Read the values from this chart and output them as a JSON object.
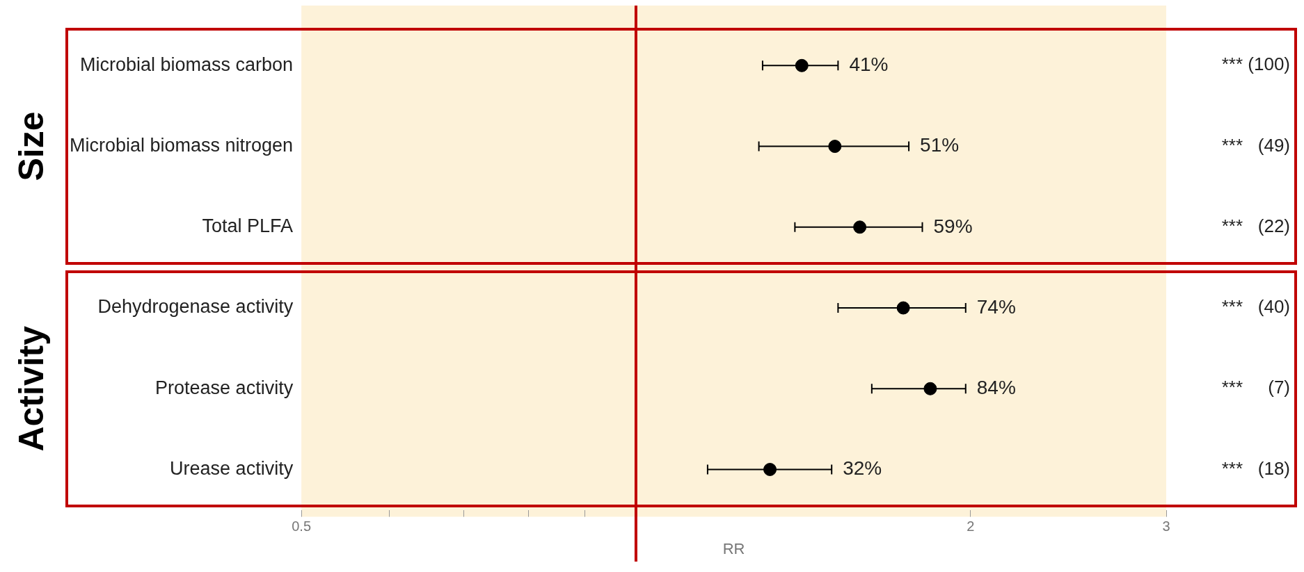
{
  "chart_data": {
    "type": "scatter",
    "orientation": "horizontal",
    "xlabel": "RR",
    "categories": [
      "Microbial biomass carbon",
      "Microbial biomass nitrogen",
      "Total PLFA",
      "Dehydrogenase activity",
      "Protease activity",
      "Urease activity"
    ],
    "series": [
      {
        "color": "#000000",
        "values": [
          1.41,
          1.51,
          1.59,
          1.74,
          1.84,
          1.32
        ],
        "errors": [
          [
            1.3,
            1.52
          ],
          [
            1.29,
            1.76
          ],
          [
            1.39,
            1.81
          ],
          [
            1.52,
            1.98
          ],
          [
            1.63,
            1.98
          ],
          [
            1.16,
            1.5
          ]
        ]
      }
    ],
    "marker": "circle",
    "log": "x",
    "xlim": [
      0.5,
      3
    ],
    "xticks": [
      0.5,
      {
        "value": 0.6,
        "label": null
      },
      {
        "value": 0.7,
        "label": null
      },
      {
        "value": 0.8,
        "label": null
      },
      {
        "value": 0.9,
        "label": null
      },
      2,
      3
    ],
    "ref_lines": [
      {
        "axis": "x",
        "value": 1,
        "color": "#c00000"
      }
    ],
    "bands": [
      {
        "axis": "x",
        "from": 0.5,
        "to": 3,
        "color": "#fdf2d9"
      }
    ],
    "annotations": [
      "Size",
      "Activity",
      "*** (100)",
      "***   (49)",
      "***   (22)",
      "***   (40)",
      "***     (7)",
      "***   (18)",
      {
        "text": "41%",
        "x": 1.52,
        "y": "Microbial biomass carbon"
      },
      {
        "text": "51%",
        "x": 1.76,
        "y": "Microbial biomass nitrogen"
      },
      {
        "text": "59%",
        "x": 1.81,
        "y": "Total PLFA"
      },
      {
        "text": "74%",
        "x": 1.98,
        "y": "Dehydrogenase activity"
      },
      {
        "text": "84%",
        "x": 1.98,
        "y": "Protease activity"
      },
      {
        "text": "32%",
        "x": 1.5,
        "y": "Urease activity"
      }
    ],
    "grid": false,
    "legend": false
  }
}
